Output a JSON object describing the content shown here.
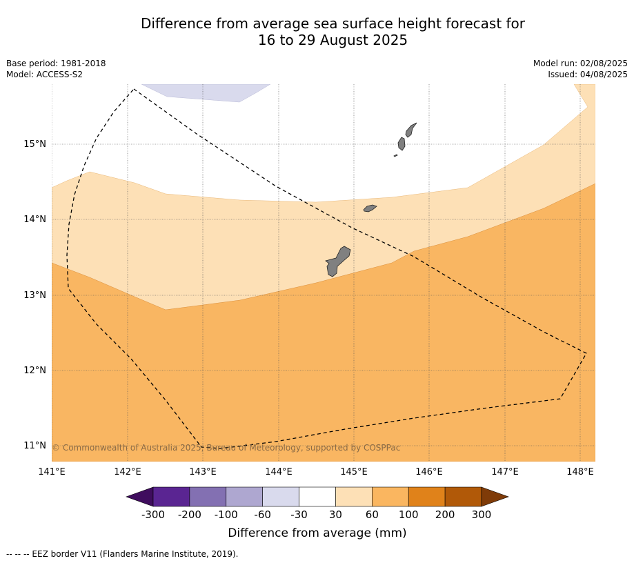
{
  "title_line1": "Difference from average sea surface height forecast for",
  "title_line2": "16 to 29 August 2025",
  "base_period": "Base period: 1981-2018",
  "model": "Model: ACCESS-S2",
  "model_run": "Model run: 02/08/2025",
  "issued": "Issued: 04/08/2025",
  "copyright": "© Commonwealth of Australia 2025, Bureau of Meteorology, supported by COSPPac",
  "footer": "--  --  -- EEZ border V11 (Flanders Marine Institute, 2019).",
  "lat_labels": [
    "15°N",
    "14°N",
    "13°N",
    "12°N",
    "11°N"
  ],
  "lon_labels": [
    "141°E",
    "142°E",
    "143°E",
    "144°E",
    "145°E",
    "146°E",
    "147°E",
    "148°E"
  ],
  "colorbar": {
    "title": "Difference from average (mm)",
    "ticks": [
      "-300",
      "-200",
      "-100",
      "-60",
      "-30",
      "30",
      "60",
      "100",
      "200",
      "300"
    ],
    "colors": [
      "#3f0d5e",
      "#5a2592",
      "#8370b2",
      "#aea7d0",
      "#d9daed",
      "#ffffff",
      "#fde0b6",
      "#fab660",
      "#e0821a",
      "#b15908",
      "#7f3b08"
    ]
  },
  "colors": {
    "band_30_60": "#fde0b6",
    "band_60_100": "#f9b662",
    "band_neg_30_60": "#d9daed",
    "land": "#808080",
    "grid": "#555555"
  }
}
